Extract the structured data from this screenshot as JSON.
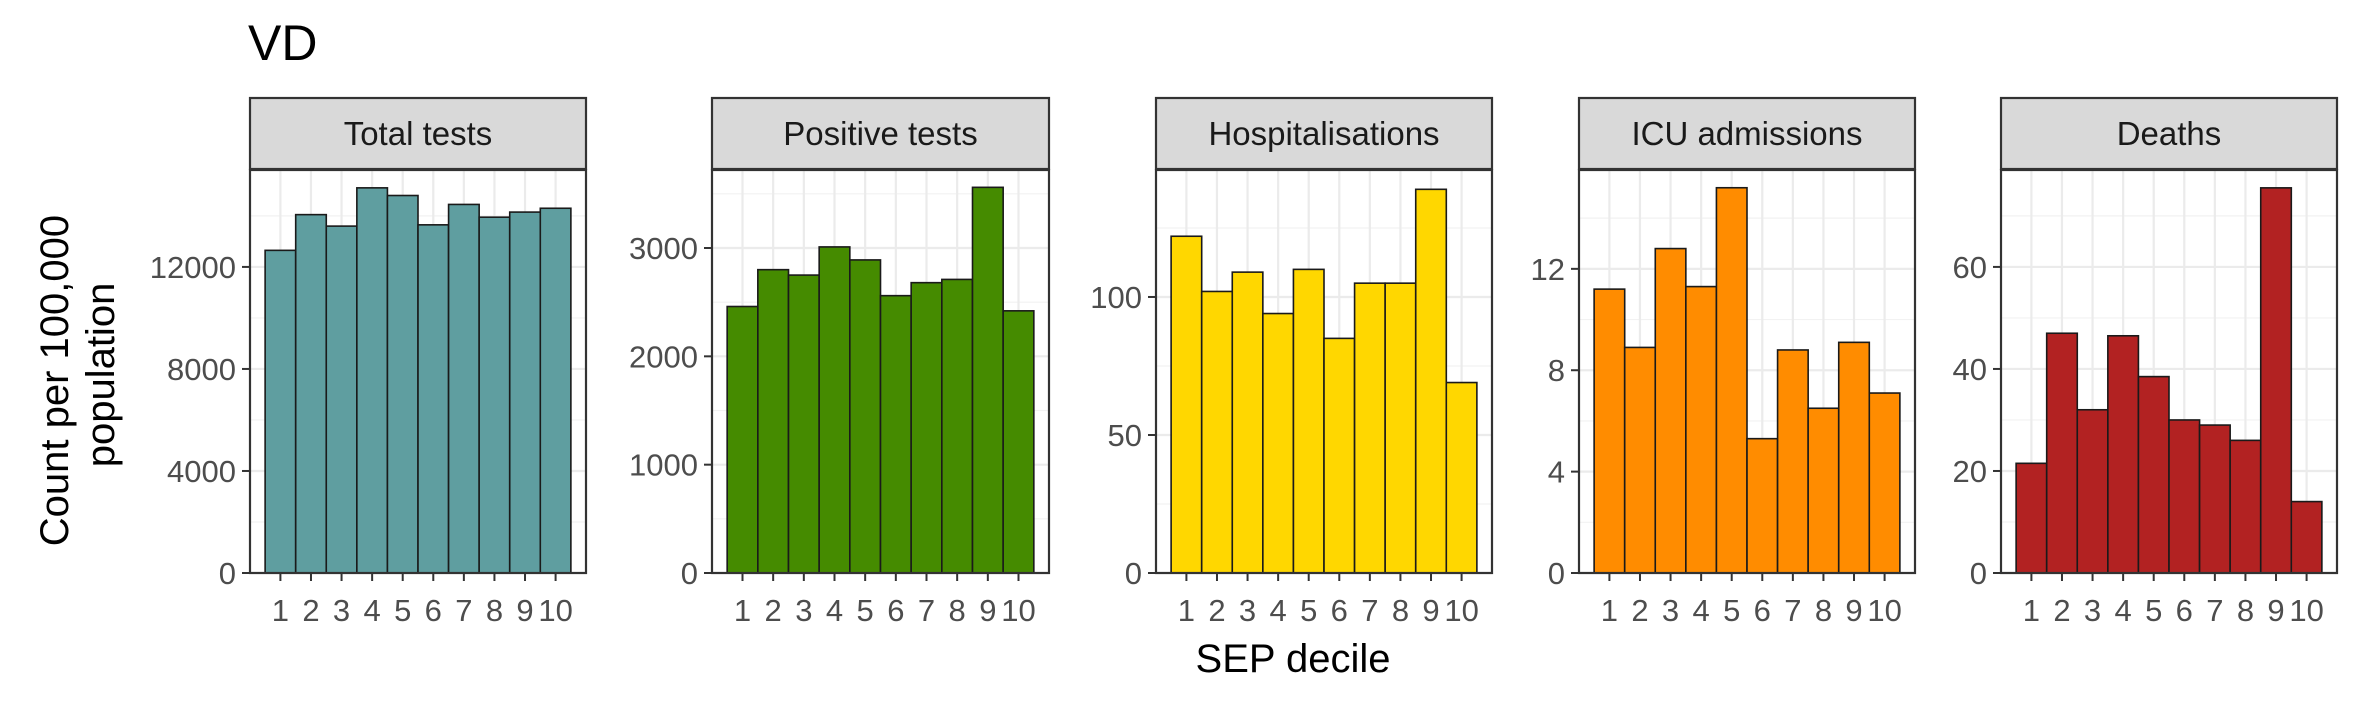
{
  "chart_data": {
    "type": "bar",
    "title": "VD",
    "xlabel": "SEP decile",
    "ylabel_lines": [
      "Count per 100,000",
      "population"
    ],
    "categories": [
      "1",
      "2",
      "3",
      "4",
      "5",
      "6",
      "7",
      "8",
      "9",
      "10"
    ],
    "panels": [
      {
        "name": "Total tests",
        "color": "#5F9EA0",
        "ylim": [
          0,
          15800
        ],
        "yticks": [
          0,
          4000,
          8000,
          12000
        ],
        "ytick_labels": [
          "0",
          "4000",
          "8000",
          "12000"
        ],
        "values": [
          12650,
          14050,
          13600,
          15100,
          14800,
          13650,
          14450,
          13950,
          14150,
          14300
        ]
      },
      {
        "name": "Positive tests",
        "color": "#458B00",
        "ylim": [
          0,
          3720
        ],
        "yticks": [
          0,
          1000,
          2000,
          3000
        ],
        "ytick_labels": [
          "0",
          "1000",
          "2000",
          "3000"
        ],
        "values": [
          2460,
          2800,
          2750,
          3010,
          2890,
          2560,
          2680,
          2710,
          3560,
          2420
        ]
      },
      {
        "name": "Hospitalisations",
        "color": "#FFD700",
        "ylim": [
          0,
          146
        ],
        "yticks": [
          0,
          50,
          100
        ],
        "ytick_labels": [
          "0",
          "50",
          "100"
        ],
        "values": [
          122,
          102,
          109,
          94,
          110,
          85,
          105,
          105,
          139,
          69
        ]
      },
      {
        "name": "ICU admissions",
        "color": "#FF8C00",
        "ylim": [
          0,
          15.9
        ],
        "yticks": [
          0,
          4,
          8,
          12
        ],
        "ytick_labels": [
          "0",
          "4",
          "8",
          "12"
        ],
        "values": [
          11.2,
          8.9,
          12.8,
          11.3,
          15.2,
          5.3,
          8.8,
          6.5,
          9.1,
          7.1
        ]
      },
      {
        "name": "Deaths",
        "color": "#B22222",
        "ylim": [
          0,
          79
        ],
        "yticks": [
          0,
          20,
          40,
          60
        ],
        "ytick_labels": [
          "0",
          "20",
          "40",
          "60"
        ],
        "values": [
          21.5,
          47,
          32,
          46.5,
          38.5,
          30,
          29,
          26,
          75.5,
          14
        ]
      }
    ]
  }
}
